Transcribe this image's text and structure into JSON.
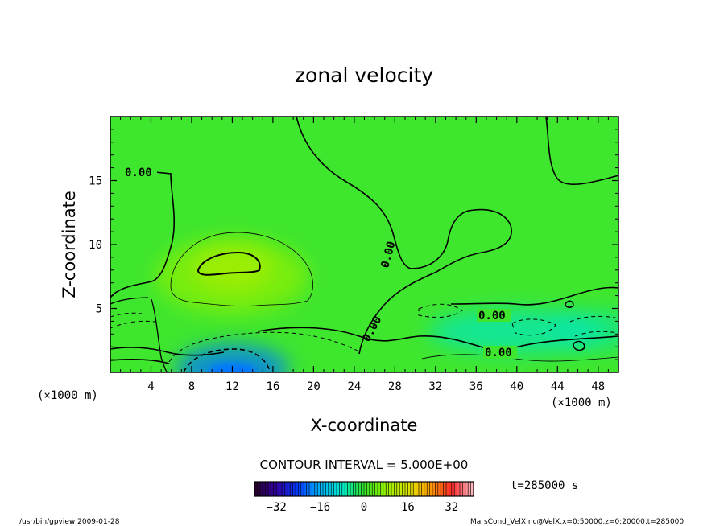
{
  "chart_data": {
    "type": "heatmap",
    "title": "zonal velocity",
    "xlabel": "X-coordinate",
    "ylabel": "Z-coordinate",
    "x_unit_left": "(×1000 m)",
    "x_unit_right": "(×1000 m)",
    "xlim": [
      0,
      50
    ],
    "ylim": [
      0,
      20
    ],
    "x_ticks": [
      "4",
      "8",
      "12",
      "16",
      "20",
      "24",
      "28",
      "32",
      "36",
      "40",
      "44",
      "48"
    ],
    "x_tick_values": [
      4,
      8,
      12,
      16,
      20,
      24,
      28,
      32,
      36,
      40,
      44,
      48
    ],
    "y_ticks": [
      "5",
      "10",
      "15"
    ],
    "y_tick_values": [
      5,
      10,
      15
    ],
    "contour_interval_text": "CONTOUR INTERVAL = 5.000E+00",
    "contour_labels": [
      "0.00",
      "0.00",
      "0.00",
      "0.00",
      "0.00"
    ],
    "colorbar": {
      "ticks": [
        "−32",
        "−16",
        "0",
        "16",
        "32"
      ],
      "tick_values": [
        -32,
        -16,
        0,
        16,
        32
      ],
      "range": [
        -40,
        40
      ]
    },
    "features": [
      {
        "kind": "max",
        "x": 12,
        "z": 8.1,
        "value": 10
      },
      {
        "kind": "max",
        "x": 12,
        "z": 7.5,
        "value": 7
      },
      {
        "kind": "min",
        "x": 12,
        "z": 0.3,
        "value": -20
      },
      {
        "kind": "min",
        "x": 40,
        "z": 3.2,
        "value": -7
      },
      {
        "kind": "min",
        "x": 48,
        "z": 3.3,
        "value": -5
      }
    ],
    "time_label": "t=285000 s",
    "footer_left": "/usr/bin/gpview  2009-01-28",
    "footer_right": "MarsCond_VelX.nc@VelX,x=0:50000,z=0:20000,t=285000"
  }
}
